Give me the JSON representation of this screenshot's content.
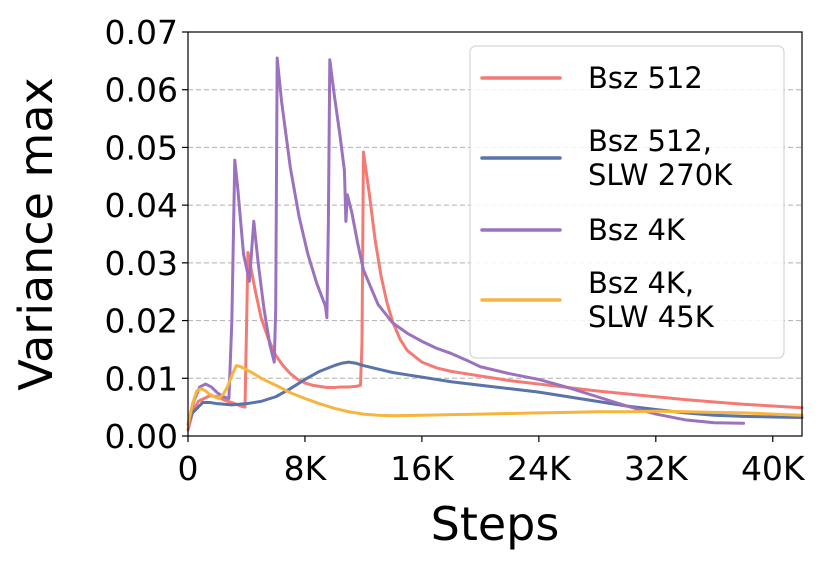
{
  "chart_data": {
    "type": "line",
    "title": "",
    "xlabel": "Steps",
    "ylabel": "Variance max",
    "xlim": [
      0,
      42000
    ],
    "ylim": [
      0,
      0.07
    ],
    "xticks": [
      {
        "value": 0,
        "label": "0"
      },
      {
        "value": 8000,
        "label": "8K"
      },
      {
        "value": 16000,
        "label": "16K"
      },
      {
        "value": 24000,
        "label": "24K"
      },
      {
        "value": 32000,
        "label": "32K"
      },
      {
        "value": 40000,
        "label": "40K"
      }
    ],
    "yticks": [
      {
        "value": 0,
        "label": "0.00"
      },
      {
        "value": 0.01,
        "label": "0.01"
      },
      {
        "value": 0.02,
        "label": "0.02"
      },
      {
        "value": 0.03,
        "label": "0.03"
      },
      {
        "value": 0.04,
        "label": "0.04"
      },
      {
        "value": 0.05,
        "label": "0.05"
      },
      {
        "value": 0.06,
        "label": "0.06"
      },
      {
        "value": 0.07,
        "label": "0.07"
      }
    ],
    "grid": "horizontal dashed",
    "legend_position": "top-right",
    "series": [
      {
        "name": "Bsz 512",
        "color": "#f47a74",
        "x": [
          0,
          300,
          700,
          1100,
          1500,
          2000,
          2500,
          3000,
          3300,
          3600,
          3900,
          4100,
          4600,
          5000,
          5500,
          6000,
          6500,
          7000,
          7500,
          8000,
          8500,
          9000,
          9500,
          10000,
          10500,
          11000,
          11500,
          11800,
          11900,
          12000,
          12400,
          12800,
          13200,
          13600,
          14000,
          14500,
          15000,
          16000,
          17000,
          18000,
          19000,
          20000,
          22000,
          24000,
          26000,
          28000,
          30000,
          32000,
          34000,
          36000,
          38000,
          40000,
          42000
        ],
        "y": [
          0.001,
          0.004,
          0.006,
          0.0065,
          0.007,
          0.0068,
          0.0062,
          0.0058,
          0.0055,
          0.0052,
          0.005,
          0.0318,
          0.0252,
          0.0205,
          0.0168,
          0.014,
          0.0122,
          0.0108,
          0.0098,
          0.0092,
          0.0088,
          0.0086,
          0.0084,
          0.0084,
          0.0085,
          0.0085,
          0.0086,
          0.0088,
          0.016,
          0.0492,
          0.042,
          0.034,
          0.0278,
          0.0232,
          0.0198,
          0.0168,
          0.0148,
          0.0128,
          0.0118,
          0.0112,
          0.0108,
          0.0104,
          0.0096,
          0.009,
          0.0084,
          0.0078,
          0.0073,
          0.0068,
          0.0063,
          0.0059,
          0.0055,
          0.0052,
          0.0049
        ]
      },
      {
        "name": "Bsz 512,\nSLW 270K",
        "color": "#5a73a8",
        "x": [
          0,
          300,
          700,
          1000,
          1500,
          2000,
          2500,
          3000,
          4000,
          5000,
          6000,
          7000,
          7500,
          8000,
          9000,
          10000,
          10500,
          11000,
          11500,
          12000,
          13000,
          14000,
          15000,
          16000,
          17000,
          18000,
          20000,
          22000,
          24000,
          26000,
          28000,
          30000,
          32000,
          34000,
          36000,
          38000,
          40000,
          42000
        ],
        "y": [
          0.002,
          0.004,
          0.005,
          0.0058,
          0.0058,
          0.0056,
          0.0055,
          0.0054,
          0.0056,
          0.006,
          0.0068,
          0.0082,
          0.009,
          0.0098,
          0.0112,
          0.0122,
          0.0126,
          0.0128,
          0.0126,
          0.0122,
          0.0116,
          0.011,
          0.0106,
          0.0102,
          0.0098,
          0.0094,
          0.0088,
          0.0082,
          0.0076,
          0.0068,
          0.006,
          0.0052,
          0.0046,
          0.004,
          0.0036,
          0.0034,
          0.0033,
          0.0032
        ]
      },
      {
        "name": "Bsz 4K",
        "color": "#9b72be",
        "x": [
          0,
          400,
          800,
          1200,
          1600,
          2000,
          2400,
          2800,
          3000,
          3200,
          3400,
          3800,
          4200,
          4500,
          4800,
          5200,
          5600,
          5900,
          6000,
          6100,
          6400,
          7000,
          7600,
          8200,
          8800,
          9400,
          9500,
          9600,
          9700,
          10000,
          10400,
          10700,
          10800,
          10900,
          11200,
          11600,
          12000,
          13000,
          14000,
          15000,
          16000,
          17000,
          18000,
          19000,
          20000,
          22000,
          24000,
          26000,
          28000,
          30000,
          32000,
          34000,
          36000,
          38000
        ],
        "y": [
          0.002,
          0.006,
          0.0085,
          0.009,
          0.0085,
          0.0075,
          0.0068,
          0.0065,
          0.02,
          0.0478,
          0.043,
          0.0315,
          0.0268,
          0.0372,
          0.03,
          0.022,
          0.0158,
          0.0128,
          0.022,
          0.0655,
          0.058,
          0.0465,
          0.038,
          0.0315,
          0.0265,
          0.0225,
          0.0205,
          0.0365,
          0.0652,
          0.0592,
          0.052,
          0.046,
          0.0372,
          0.0418,
          0.0388,
          0.0335,
          0.0288,
          0.0228,
          0.0196,
          0.0178,
          0.0164,
          0.0152,
          0.0143,
          0.0132,
          0.012,
          0.0108,
          0.0098,
          0.0084,
          0.0068,
          0.0052,
          0.0038,
          0.0028,
          0.0023,
          0.0022
        ]
      },
      {
        "name": "Bsz 4K,\nSLW 45K",
        "color": "#f5b53f",
        "x": [
          0,
          300,
          600,
          900,
          1200,
          1500,
          1800,
          2100,
          2400,
          2700,
          3000,
          3300,
          3600,
          4000,
          4500,
          5000,
          6000,
          7000,
          8000,
          9000,
          10000,
          11000,
          12000,
          13000,
          14000,
          16000,
          18000,
          20000,
          22000,
          24000,
          26000,
          28000,
          30000,
          32000,
          34000,
          36000,
          38000,
          40000,
          42000
        ],
        "y": [
          0.002,
          0.0055,
          0.0078,
          0.0082,
          0.0078,
          0.0072,
          0.0068,
          0.0065,
          0.0072,
          0.0085,
          0.0105,
          0.0122,
          0.012,
          0.0115,
          0.0108,
          0.01,
          0.0088,
          0.0075,
          0.0065,
          0.0056,
          0.0048,
          0.0042,
          0.0038,
          0.0036,
          0.0035,
          0.0036,
          0.0037,
          0.0038,
          0.0039,
          0.004,
          0.0041,
          0.0042,
          0.0042,
          0.0043,
          0.0042,
          0.0041,
          0.004,
          0.0038,
          0.0036
        ]
      }
    ]
  }
}
